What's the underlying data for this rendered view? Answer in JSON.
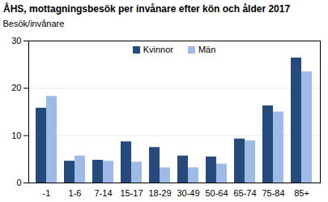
{
  "chart_data": {
    "type": "bar",
    "title": "ÅHS, mottagningsbesök per invånare efter kön och ålder 2017",
    "y_label": "Besök/invånare",
    "categories": [
      "-1",
      "1-6",
      "7-14",
      "15-17",
      "18-29",
      "30-49",
      "50-64",
      "65-74",
      "75-84",
      "85+"
    ],
    "series": [
      {
        "name": "Kvinnor",
        "color": "#254b7c",
        "values": [
          15.8,
          4.6,
          4.8,
          8.7,
          7.5,
          5.7,
          5.5,
          9.3,
          16.3,
          26.4
        ]
      },
      {
        "name": "Män",
        "color": "#9dbbe6",
        "values": [
          18.3,
          5.7,
          4.6,
          4.4,
          3.2,
          3.2,
          4.0,
          8.9,
          15.0,
          23.5
        ]
      }
    ],
    "ylim": [
      0,
      30
    ],
    "yticks": [
      0,
      10,
      20,
      30
    ],
    "grid": true,
    "legend": "top"
  }
}
